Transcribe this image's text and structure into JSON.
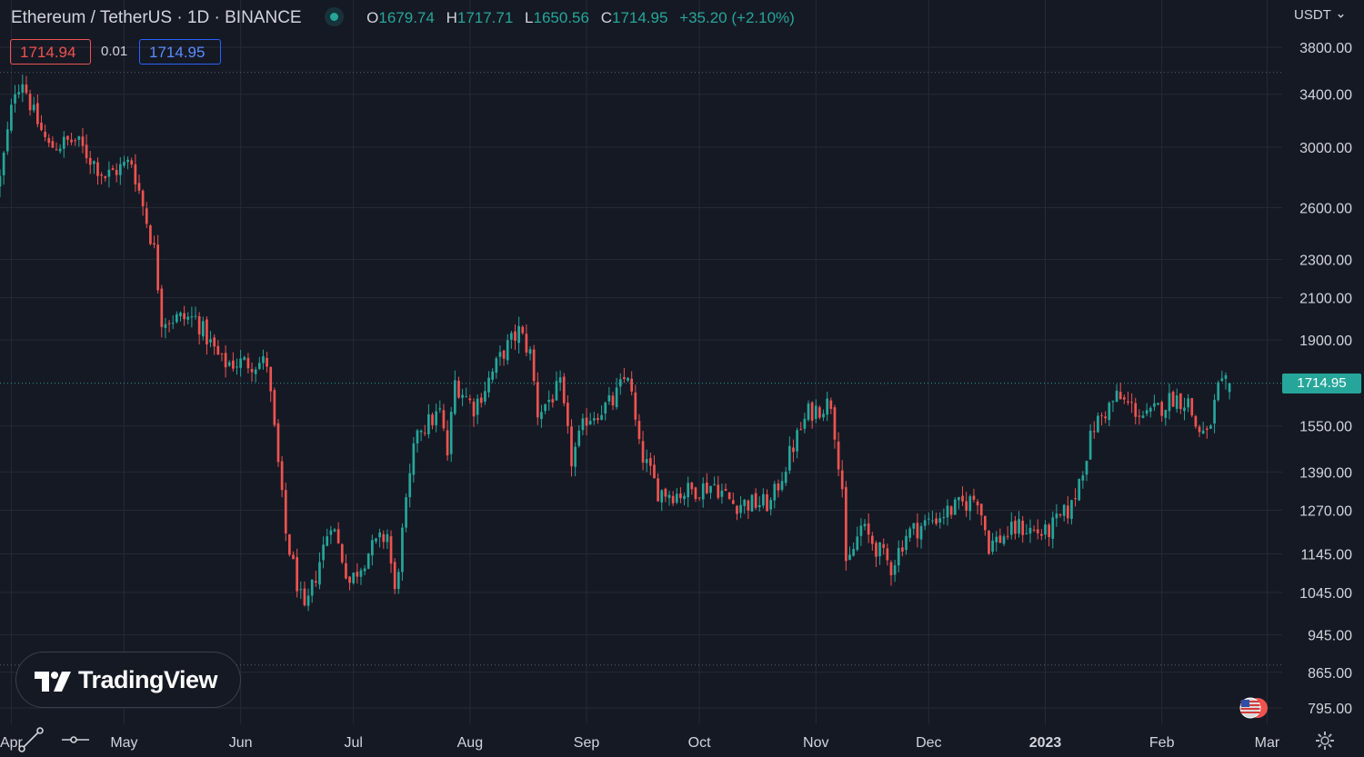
{
  "header": {
    "symbol_title": "Ethereum / TetherUS · 1D · BINANCE",
    "open_key": "O",
    "open": "1679.74",
    "high_key": "H",
    "high": "1717.71",
    "low_key": "L",
    "low": "1650.56",
    "close_key": "C",
    "close": "1714.95",
    "change": "+35.20 (+2.10%)",
    "sell_price": "1714.94",
    "spread": "0.01",
    "buy_price": "1714.95"
  },
  "currency_menu": "USDT",
  "last_price_label": "1714.95",
  "branding": {
    "logo_text": "TradingView"
  },
  "colors": {
    "background": "#151924",
    "up": "#26a69a",
    "down": "#ef5350",
    "grid": "#262a35",
    "text": "#d1d4dc"
  },
  "icons": [
    "trend-line-icon",
    "horizontal-ray-icon",
    "us-flag-icon",
    "gear-icon",
    "chevron-down-icon"
  ],
  "chart_data": {
    "type": "candlestick",
    "y_scale": "log",
    "ylim": [
      760,
      4000
    ],
    "y_ticks": [
      3800,
      3400,
      3000,
      2600,
      2300,
      2100,
      1900,
      1550,
      1390,
      1270,
      1145,
      1045,
      945,
      865,
      795
    ],
    "y_tick_labels": [
      "3800.00",
      "3400.00",
      "3000.00",
      "2600.00",
      "2300.00",
      "2100.00",
      "1900.00",
      "1550.00",
      "1390.00",
      "1270.00",
      "1145.00",
      "1045.00",
      "945.00",
      "865.00",
      "795.00"
    ],
    "x_range": [
      "2022-03-29",
      "2023-03-05"
    ],
    "x_ticks": [
      {
        "label": "Apr",
        "date": "2022-04-01"
      },
      {
        "label": "May",
        "date": "2022-05-01"
      },
      {
        "label": "Jun",
        "date": "2022-06-01"
      },
      {
        "label": "Jul",
        "date": "2022-07-01"
      },
      {
        "label": "Aug",
        "date": "2022-08-01"
      },
      {
        "label": "Sep",
        "date": "2022-09-01"
      },
      {
        "label": "Oct",
        "date": "2022-10-01"
      },
      {
        "label": "Nov",
        "date": "2022-11-01"
      },
      {
        "label": "Dec",
        "date": "2022-12-01"
      },
      {
        "label": "2023",
        "date": "2023-01-01",
        "bold": true
      },
      {
        "label": "Feb",
        "date": "2023-02-01"
      },
      {
        "label": "Mar",
        "date": "2023-03-01"
      }
    ],
    "grid": true,
    "reference_lines": [
      3580,
      1714.95,
      880
    ],
    "close_path_daily": [
      {
        "date": "2022-03-29",
        "close": 2780
      },
      {
        "date": "2022-04-02",
        "close": 3450
      },
      {
        "date": "2022-04-04",
        "close": 3520
      },
      {
        "date": "2022-04-07",
        "close": 3240
      },
      {
        "date": "2022-04-11",
        "close": 3000
      },
      {
        "date": "2022-04-18",
        "close": 3050
      },
      {
        "date": "2022-04-26",
        "close": 2800
      },
      {
        "date": "2022-05-03",
        "close": 2900
      },
      {
        "date": "2022-05-09",
        "close": 2350
      },
      {
        "date": "2022-05-11",
        "close": 2000
      },
      {
        "date": "2022-05-20",
        "close": 2000
      },
      {
        "date": "2022-05-27",
        "close": 1800
      },
      {
        "date": "2022-06-08",
        "close": 1800
      },
      {
        "date": "2022-06-13",
        "close": 1200
      },
      {
        "date": "2022-06-18",
        "close": 990
      },
      {
        "date": "2022-06-25",
        "close": 1240
      },
      {
        "date": "2022-06-30",
        "close": 1070
      },
      {
        "date": "2022-07-05",
        "close": 1150
      },
      {
        "date": "2022-07-10",
        "close": 1200
      },
      {
        "date": "2022-07-12",
        "close": 1040
      },
      {
        "date": "2022-07-14",
        "close": 1200
      },
      {
        "date": "2022-07-18",
        "close": 1550
      },
      {
        "date": "2022-07-20",
        "close": 1550
      },
      {
        "date": "2022-07-24",
        "close": 1600
      },
      {
        "date": "2022-07-26",
        "close": 1450
      },
      {
        "date": "2022-07-28",
        "close": 1720
      },
      {
        "date": "2022-08-02",
        "close": 1620
      },
      {
        "date": "2022-08-05",
        "close": 1700
      },
      {
        "date": "2022-08-10",
        "close": 1850
      },
      {
        "date": "2022-08-14",
        "close": 1940
      },
      {
        "date": "2022-08-17",
        "close": 1840
      },
      {
        "date": "2022-08-19",
        "close": 1600
      },
      {
        "date": "2022-08-25",
        "close": 1700
      },
      {
        "date": "2022-08-28",
        "close": 1430
      },
      {
        "date": "2022-09-01",
        "close": 1580
      },
      {
        "date": "2022-09-08",
        "close": 1640
      },
      {
        "date": "2022-09-12",
        "close": 1760
      },
      {
        "date": "2022-09-15",
        "close": 1470
      },
      {
        "date": "2022-09-20",
        "close": 1330
      },
      {
        "date": "2022-09-25",
        "close": 1320
      },
      {
        "date": "2022-10-05",
        "close": 1350
      },
      {
        "date": "2022-10-10",
        "close": 1290
      },
      {
        "date": "2022-10-20",
        "close": 1290
      },
      {
        "date": "2022-10-26",
        "close": 1480
      },
      {
        "date": "2022-10-30",
        "close": 1600
      },
      {
        "date": "2022-11-05",
        "close": 1640
      },
      {
        "date": "2022-11-08",
        "close": 1340
      },
      {
        "date": "2022-11-09",
        "close": 1100
      },
      {
        "date": "2022-11-13",
        "close": 1220
      },
      {
        "date": "2022-11-21",
        "close": 1110
      },
      {
        "date": "2022-11-25",
        "close": 1200
      },
      {
        "date": "2022-12-05",
        "close": 1260
      },
      {
        "date": "2022-12-14",
        "close": 1310
      },
      {
        "date": "2022-12-17",
        "close": 1170
      },
      {
        "date": "2022-12-25",
        "close": 1220
      },
      {
        "date": "2023-01-01",
        "close": 1200
      },
      {
        "date": "2023-01-08",
        "close": 1280
      },
      {
        "date": "2023-01-14",
        "close": 1550
      },
      {
        "date": "2023-01-20",
        "close": 1660
      },
      {
        "date": "2023-01-28",
        "close": 1580
      },
      {
        "date": "2023-02-04",
        "close": 1660
      },
      {
        "date": "2023-02-08",
        "close": 1640
      },
      {
        "date": "2023-02-10",
        "close": 1550
      },
      {
        "date": "2023-02-13",
        "close": 1510
      },
      {
        "date": "2023-02-16",
        "close": 1690
      },
      {
        "date": "2023-02-19",
        "close": 1714.95
      }
    ]
  }
}
